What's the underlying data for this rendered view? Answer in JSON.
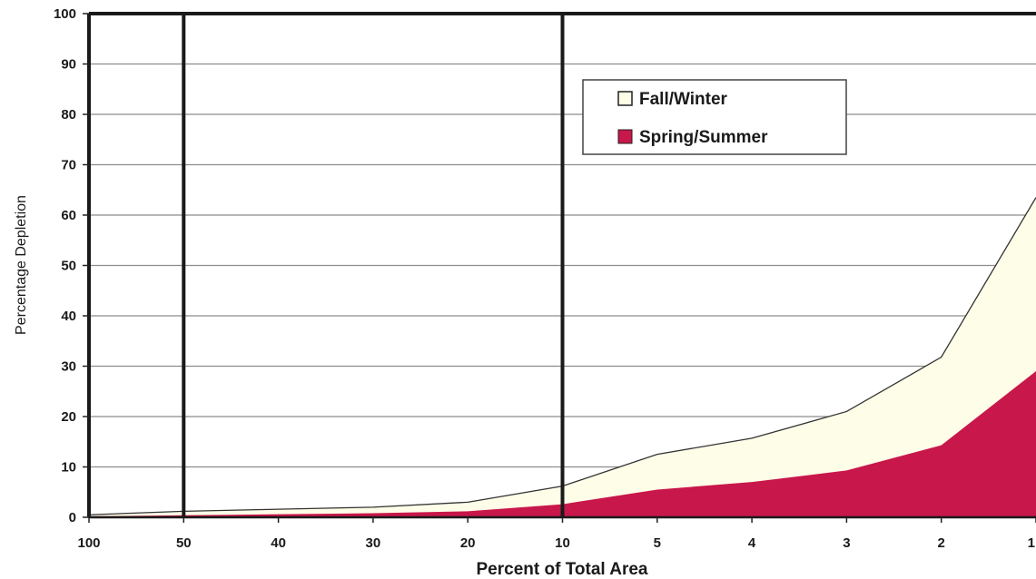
{
  "chart_data": {
    "type": "area",
    "stacked": false,
    "categories": [
      "100",
      "50",
      "40",
      "30",
      "20",
      "10",
      "5",
      "4",
      "3",
      "2",
      "1"
    ],
    "series": [
      {
        "name": "Fall/Winter",
        "color": "#fdfde8",
        "values": [
          0.5,
          1.2,
          1.6,
          2.0,
          3.0,
          6.2,
          12.5,
          15.7,
          21.0,
          31.8,
          63.5
        ]
      },
      {
        "name": "Spring/Summer",
        "color": "#c8174a",
        "values": [
          0.2,
          0.4,
          0.6,
          0.8,
          1.2,
          2.6,
          5.5,
          7.0,
          9.3,
          14.3,
          29.0
        ]
      }
    ],
    "title": "",
    "xlabel": "Percent of Total Area",
    "ylabel": "Percentage Depletion",
    "ylim": [
      0,
      100
    ],
    "yticks": [
      "0",
      "10",
      "20",
      "30",
      "40",
      "50",
      "60",
      "70",
      "80",
      "90",
      "100"
    ],
    "grid": true,
    "legend_position": "top-right",
    "reference_lines_at": [
      "50",
      "10"
    ]
  }
}
